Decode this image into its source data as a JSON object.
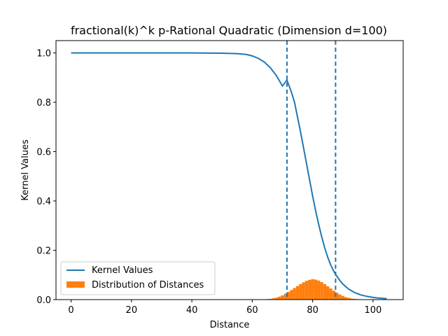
{
  "chart_data": {
    "type": "line",
    "title": "fractional(k)^k p-Rational Quadratic (Dimension d=100)",
    "xlabel": "Distance",
    "ylabel": "Kernel Values",
    "xlim": [
      -5,
      110
    ],
    "ylim": [
      0,
      1.05
    ],
    "xticks": [
      "0",
      "20",
      "40",
      "60",
      "80",
      "100"
    ],
    "yticks": [
      "0.0",
      "0.2",
      "0.4",
      "0.6",
      "0.8",
      "1.0"
    ],
    "grid": false,
    "legend": {
      "placement": "lower-left",
      "entries": [
        "Kernel Values",
        "Distribution of Distances"
      ]
    },
    "series": [
      {
        "name": "Kernel Values",
        "kind": "line",
        "color": "#1f77b4",
        "x": [
          0,
          10,
          20,
          30,
          40,
          50,
          55,
          58,
          60,
          62,
          64,
          66,
          68,
          70,
          71.5,
          73,
          74,
          75,
          76,
          77,
          78,
          79,
          80,
          81,
          82,
          83,
          84,
          85,
          86,
          87,
          88,
          89,
          90,
          92,
          94,
          96,
          98,
          100,
          102,
          104.5
        ],
        "y": [
          1.0,
          1.0,
          1.0,
          1.0,
          1.0,
          0.999,
          0.997,
          0.994,
          0.988,
          0.978,
          0.963,
          0.94,
          0.908,
          0.866,
          0.89,
          0.84,
          0.8,
          0.74,
          0.68,
          0.615,
          0.55,
          0.485,
          0.42,
          0.36,
          0.305,
          0.255,
          0.21,
          0.172,
          0.14,
          0.115,
          0.095,
          0.078,
          0.063,
          0.042,
          0.028,
          0.019,
          0.013,
          0.009,
          0.006,
          0.004
        ]
      },
      {
        "name": "Distribution of Distances",
        "kind": "histogram",
        "color": "#ff7f0e",
        "x": [
          64,
          65,
          66,
          67,
          68,
          69,
          70,
          71,
          72,
          73,
          74,
          75,
          76,
          77,
          78,
          79,
          80,
          81,
          82,
          83,
          84,
          85,
          86,
          87,
          88,
          89,
          90,
          91,
          92,
          93,
          94,
          95,
          96
        ],
        "y": [
          0.001,
          0.002,
          0.003,
          0.005,
          0.008,
          0.012,
          0.017,
          0.024,
          0.031,
          0.039,
          0.047,
          0.055,
          0.063,
          0.07,
          0.076,
          0.08,
          0.083,
          0.081,
          0.077,
          0.071,
          0.063,
          0.054,
          0.045,
          0.036,
          0.028,
          0.021,
          0.015,
          0.01,
          0.007,
          0.004,
          0.003,
          0.002,
          0.001
        ]
      }
    ],
    "vlines": [
      {
        "x": 71.5,
        "style": "dashed",
        "color": "#1f77b4"
      },
      {
        "x": 87.6,
        "style": "dashed",
        "color": "#1f77b4"
      }
    ]
  }
}
